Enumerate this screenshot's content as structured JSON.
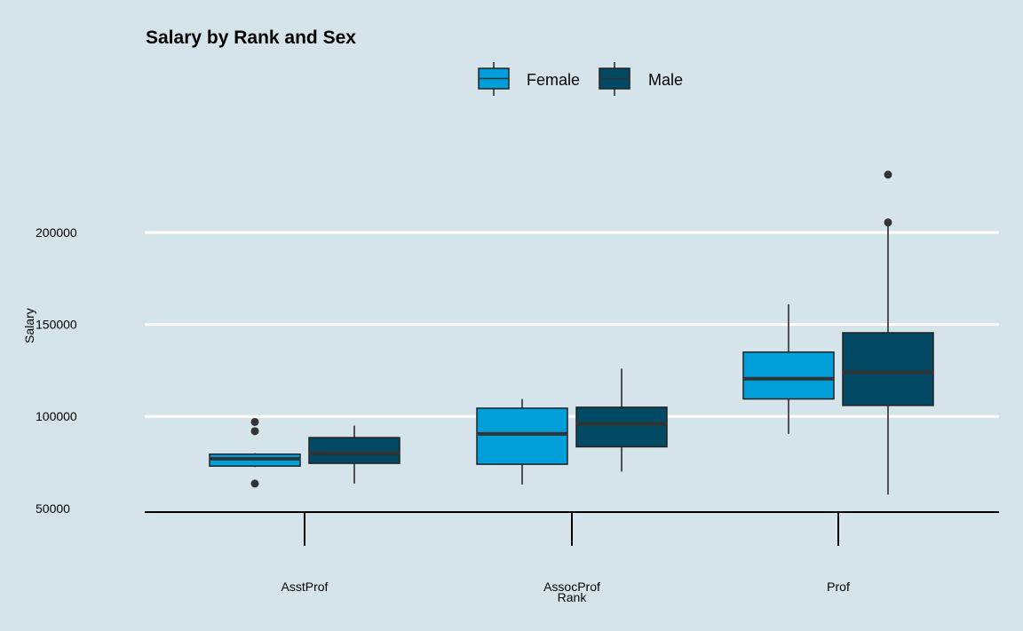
{
  "chart_data": {
    "type": "box",
    "title": "Salary by Rank and Sex",
    "xlabel": "Rank",
    "ylabel": "Salary",
    "categories": [
      "AsstProf",
      "AssocProf",
      "Prof"
    ],
    "yticks": [
      50000,
      100000,
      150000,
      200000
    ],
    "ylim": [
      48000,
      242000
    ],
    "grid": "horizontal",
    "legend_position": "top",
    "series": [
      {
        "name": "Female",
        "color": "#009fd9",
        "boxes": [
          {
            "category": "AsstProf",
            "min": 72500,
            "q1": 73000,
            "median": 77000,
            "q3": 79500,
            "max": 80000,
            "outliers": [
              97000,
              92000,
              63500
            ]
          },
          {
            "category": "AssocProf",
            "min": 63000,
            "q1": 74000,
            "median": 90500,
            "q3": 104500,
            "max": 109500,
            "outliers": []
          },
          {
            "category": "Prof",
            "min": 90500,
            "q1": 109500,
            "median": 120500,
            "q3": 135000,
            "max": 161000,
            "outliers": []
          }
        ]
      },
      {
        "name": "Male",
        "color": "#024a64",
        "boxes": [
          {
            "category": "AsstProf",
            "min": 63500,
            "q1": 74500,
            "median": 80000,
            "q3": 88500,
            "max": 95000,
            "outliers": []
          },
          {
            "category": "AssocProf",
            "min": 70000,
            "q1": 83500,
            "median": 96000,
            "q3": 105000,
            "max": 126000,
            "outliers": []
          },
          {
            "category": "Prof",
            "min": 57500,
            "q1": 106000,
            "median": 124000,
            "q3": 145500,
            "max": 205000,
            "outliers": [
              231500,
              205500
            ]
          }
        ]
      }
    ]
  }
}
